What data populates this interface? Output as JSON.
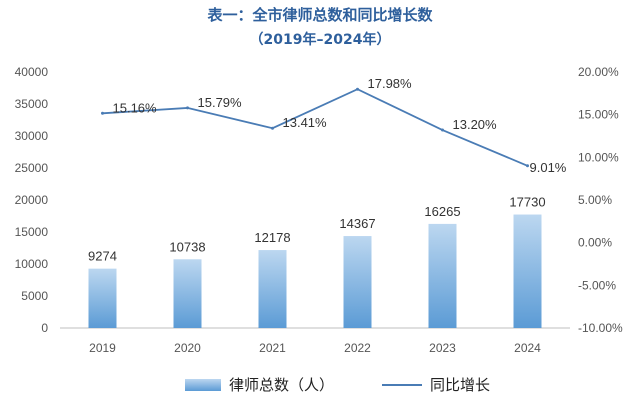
{
  "title": "表一：全市律师总数和同比增长数",
  "subtitle": "（2019年–2024年）",
  "legend": {
    "bar_label": "律师总数（人）",
    "line_label": "同比增长"
  },
  "colors": {
    "title": "#2e5f9c",
    "bar_top": "#bcd7f0",
    "bar_bottom": "#5b9bd5",
    "line": "#4a7cb5",
    "axis_text": "#555555"
  },
  "chart_data": {
    "type": "bar",
    "categories": [
      "2019",
      "2020",
      "2021",
      "2022",
      "2023",
      "2024"
    ],
    "series": [
      {
        "name": "律师总数（人）",
        "type": "bar",
        "axis": "left",
        "values": [
          9274,
          10738,
          12178,
          14367,
          16265,
          17730
        ],
        "labels": [
          "9274",
          "10738",
          "12178",
          "14367",
          "16265",
          "17730"
        ]
      },
      {
        "name": "同比增长",
        "type": "line",
        "axis": "right",
        "values": [
          15.16,
          15.79,
          13.41,
          17.98,
          13.2,
          9.01
        ],
        "labels": [
          "15.16%",
          "15.79%",
          "13.41%",
          "17.98%",
          "13.20%",
          "9.01%"
        ]
      }
    ],
    "y_left": {
      "min": 0,
      "max": 40000,
      "step": 5000,
      "ticks": [
        "0",
        "5000",
        "10000",
        "15000",
        "20000",
        "25000",
        "30000",
        "35000",
        "40000"
      ]
    },
    "y_right": {
      "min": -10,
      "max": 20,
      "step": 5,
      "ticks": [
        "-10.00%",
        "-5.00%",
        "0.00%",
        "5.00%",
        "10.00%",
        "15.00%",
        "20.00%"
      ]
    },
    "grid": false,
    "legend_position": "bottom"
  }
}
